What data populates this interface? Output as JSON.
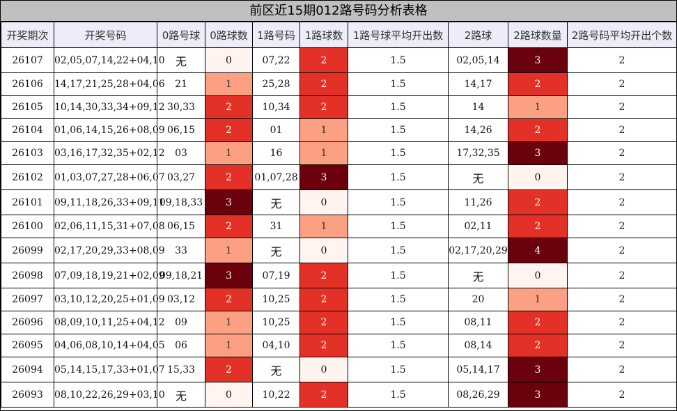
{
  "title": "前区近15期012路号码分析表格",
  "columns": [
    "开奖期次",
    "开奖号码",
    "0路号球",
    "0路球数",
    "1路号码",
    "1路球数",
    "1路号球平均开出数",
    "2路球",
    "2路球数量",
    "2路号码平均开出个数"
  ],
  "colors": {
    "title_bg": "#c0c0c0",
    "header_bg": "#ecedf9",
    "zero_bg": "#fff4ef",
    "one_bg": "#fca083",
    "two_bg": "#e43127",
    "three_bg": "#6b010d"
  },
  "chart_data": {
    "type": "table",
    "title": "前区近15期012路号码分析表格",
    "rows": [
      {
        "period": "26107",
        "numbers": "02,05,07,14,22+04,10",
        "zero_nums": "无",
        "zero_count": "0",
        "one_nums": "07,22",
        "one_count": "2",
        "one_avg": "1.5",
        "two_nums": "02,05,14",
        "two_count": "3",
        "two_avg": "2"
      },
      {
        "period": "26106",
        "numbers": "14,17,21,25,28+04,06",
        "zero_nums": "21",
        "zero_count": "1",
        "one_nums": "25,28",
        "one_count": "2",
        "one_avg": "1.5",
        "two_nums": "14,17",
        "two_count": "2",
        "two_avg": "2"
      },
      {
        "period": "26105",
        "numbers": "10,14,30,33,34+09,12",
        "zero_nums": "30,33",
        "zero_count": "2",
        "one_nums": "10,34",
        "one_count": "2",
        "one_avg": "1.5",
        "two_nums": "14",
        "two_count": "1",
        "two_avg": "2"
      },
      {
        "period": "26104",
        "numbers": "01,06,14,15,26+08,09",
        "zero_nums": "06,15",
        "zero_count": "2",
        "one_nums": "01",
        "one_count": "1",
        "one_avg": "1.5",
        "two_nums": "14,26",
        "two_count": "2",
        "two_avg": "2"
      },
      {
        "period": "26103",
        "numbers": "03,16,17,32,35+02,12",
        "zero_nums": "03",
        "zero_count": "1",
        "one_nums": "16",
        "one_count": "1",
        "one_avg": "1.5",
        "two_nums": "17,32,35",
        "two_count": "3",
        "two_avg": "2"
      },
      {
        "period": "26102",
        "numbers": "01,03,07,27,28+06,07",
        "zero_nums": "03,27",
        "zero_count": "2",
        "one_nums": "01,07,28",
        "one_count": "3",
        "one_avg": "1.5",
        "two_nums": "无",
        "two_count": "0",
        "two_avg": "2"
      },
      {
        "period": "26101",
        "numbers": "09,11,18,26,33+09,11",
        "zero_nums": "09,18,33",
        "zero_count": "3",
        "one_nums": "无",
        "one_count": "0",
        "one_avg": "1.5",
        "two_nums": "11,26",
        "two_count": "2",
        "two_avg": "2"
      },
      {
        "period": "26100",
        "numbers": "02,06,11,15,31+07,08",
        "zero_nums": "06,15",
        "zero_count": "2",
        "one_nums": "31",
        "one_count": "1",
        "one_avg": "1.5",
        "two_nums": "02,11",
        "two_count": "2",
        "two_avg": "2"
      },
      {
        "period": "26099",
        "numbers": "02,17,20,29,33+08,09",
        "zero_nums": "33",
        "zero_count": "1",
        "one_nums": "无",
        "one_count": "0",
        "one_avg": "1.5",
        "two_nums": "02,17,20,29",
        "two_count": "4",
        "two_avg": "2"
      },
      {
        "period": "26098",
        "numbers": "07,09,18,19,21+02,09",
        "zero_nums": "09,18,21",
        "zero_count": "3",
        "one_nums": "07,19",
        "one_count": "2",
        "one_avg": "1.5",
        "two_nums": "无",
        "two_count": "0",
        "two_avg": "2"
      },
      {
        "period": "26097",
        "numbers": "03,10,12,20,25+01,09",
        "zero_nums": "03,12",
        "zero_count": "2",
        "one_nums": "10,25",
        "one_count": "2",
        "one_avg": "1.5",
        "two_nums": "20",
        "two_count": "1",
        "two_avg": "2"
      },
      {
        "period": "26096",
        "numbers": "08,09,10,11,25+04,12",
        "zero_nums": "09",
        "zero_count": "1",
        "one_nums": "10,25",
        "one_count": "2",
        "one_avg": "1.5",
        "two_nums": "08,11",
        "two_count": "2",
        "two_avg": "2"
      },
      {
        "period": "26095",
        "numbers": "04,06,08,10,14+04,05",
        "zero_nums": "06",
        "zero_count": "1",
        "one_nums": "04,10",
        "one_count": "2",
        "one_avg": "1.5",
        "two_nums": "08,14",
        "two_count": "2",
        "two_avg": "2"
      },
      {
        "period": "26094",
        "numbers": "05,14,15,17,33+01,07",
        "zero_nums": "15,33",
        "zero_count": "2",
        "one_nums": "无",
        "one_count": "0",
        "one_avg": "1.5",
        "two_nums": "05,14,17",
        "two_count": "3",
        "two_avg": "2"
      },
      {
        "period": "26093",
        "numbers": "08,10,22,26,29+03,10",
        "zero_nums": "无",
        "zero_count": "0",
        "one_nums": "10,22",
        "one_count": "2",
        "one_avg": "1.5",
        "two_nums": "08,26,29",
        "two_count": "3",
        "two_avg": "2"
      }
    ]
  }
}
